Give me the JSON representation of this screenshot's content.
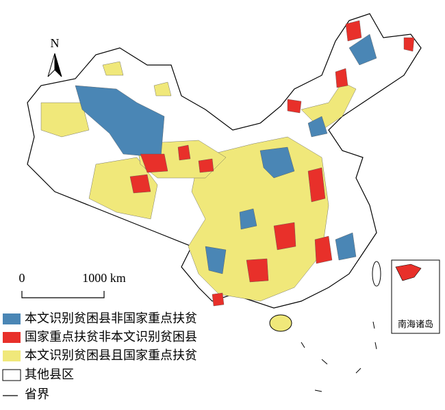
{
  "north_arrow": "N",
  "scale_bar": {
    "start": "0",
    "end": "1000 km"
  },
  "legend": [
    "本文识别贫困县非国家重点扶贫",
    "国家重点扶贫非本文识别贫困县",
    "本文识别贫困县且国家重点扶贫",
    "其他县区",
    "省界"
  ],
  "inset": {
    "label": "南海诸岛"
  }
}
